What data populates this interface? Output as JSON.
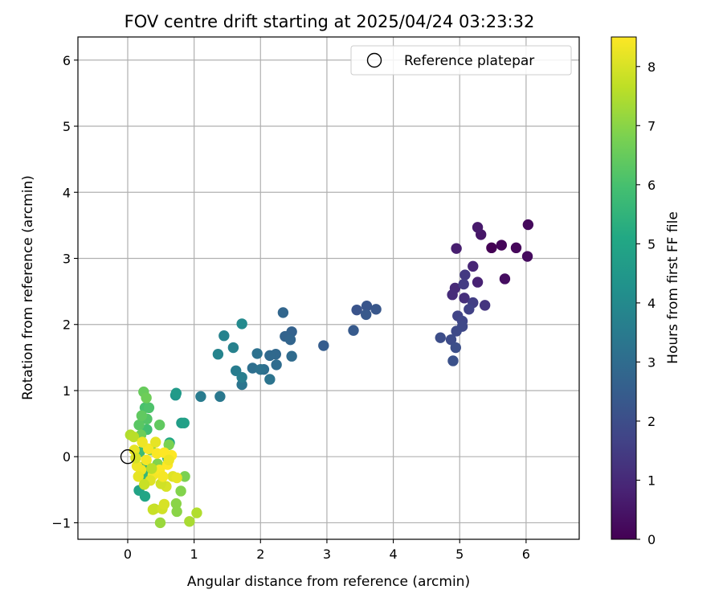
{
  "chart_data": {
    "type": "scatter",
    "title": "FOV centre drift starting at 2025/04/24 03:23:32",
    "xlabel": "Angular distance from reference (arcmin)",
    "ylabel": "Rotation from reference (arcmin)",
    "xlim": [
      -0.75,
      6.8
    ],
    "ylim": [
      -1.25,
      6.35
    ],
    "xticks": [
      0,
      1,
      2,
      3,
      4,
      5,
      6
    ],
    "yticks": [
      -1,
      0,
      1,
      2,
      3,
      4,
      5,
      6
    ],
    "grid": true,
    "legend": {
      "position": "top-right",
      "entries": [
        "Reference platepar"
      ]
    },
    "reference_point": {
      "x": 0,
      "y": 0
    },
    "colorbar": {
      "label": "Hours from first FF file",
      "colormap": "viridis",
      "range": [
        0,
        8.5
      ],
      "ticks": [
        0,
        1,
        2,
        3,
        4,
        5,
        6,
        7,
        8
      ]
    },
    "points": [
      {
        "x": 5.48,
        "y": 3.16,
        "c": 0.0
      },
      {
        "x": 5.63,
        "y": 3.2,
        "c": 0.1
      },
      {
        "x": 5.85,
        "y": 3.16,
        "c": 0.15
      },
      {
        "x": 6.03,
        "y": 3.51,
        "c": 0.2
      },
      {
        "x": 6.02,
        "y": 3.03,
        "c": 0.25
      },
      {
        "x": 5.68,
        "y": 2.69,
        "c": 0.3
      },
      {
        "x": 5.32,
        "y": 3.36,
        "c": 0.5
      },
      {
        "x": 5.27,
        "y": 3.47,
        "c": 0.6
      },
      {
        "x": 4.95,
        "y": 3.15,
        "c": 0.7
      },
      {
        "x": 5.27,
        "y": 2.64,
        "c": 0.8
      },
      {
        "x": 5.2,
        "y": 2.88,
        "c": 0.9
      },
      {
        "x": 4.93,
        "y": 2.55,
        "c": 1.0
      },
      {
        "x": 4.89,
        "y": 2.45,
        "c": 1.05
      },
      {
        "x": 5.07,
        "y": 2.4,
        "c": 1.15
      },
      {
        "x": 5.38,
        "y": 2.29,
        "c": 1.3
      },
      {
        "x": 5.08,
        "y": 2.75,
        "c": 1.4
      },
      {
        "x": 5.06,
        "y": 2.61,
        "c": 1.5
      },
      {
        "x": 5.2,
        "y": 2.33,
        "c": 1.55
      },
      {
        "x": 5.14,
        "y": 2.23,
        "c": 1.65
      },
      {
        "x": 4.97,
        "y": 2.13,
        "c": 1.7
      },
      {
        "x": 5.04,
        "y": 2.05,
        "c": 1.8
      },
      {
        "x": 5.04,
        "y": 1.97,
        "c": 1.85
      },
      {
        "x": 4.95,
        "y": 1.9,
        "c": 1.9
      },
      {
        "x": 4.87,
        "y": 1.77,
        "c": 1.95
      },
      {
        "x": 4.71,
        "y": 1.8,
        "c": 2.0
      },
      {
        "x": 4.94,
        "y": 1.65,
        "c": 2.05
      },
      {
        "x": 4.9,
        "y": 1.45,
        "c": 2.1
      },
      {
        "x": 3.45,
        "y": 2.22,
        "c": 2.2
      },
      {
        "x": 3.6,
        "y": 2.28,
        "c": 2.25
      },
      {
        "x": 3.74,
        "y": 2.23,
        "c": 2.3
      },
      {
        "x": 3.59,
        "y": 2.15,
        "c": 2.35
      },
      {
        "x": 3.4,
        "y": 1.91,
        "c": 2.4
      },
      {
        "x": 2.95,
        "y": 1.68,
        "c": 2.5
      },
      {
        "x": 2.47,
        "y": 1.89,
        "c": 2.65
      },
      {
        "x": 2.37,
        "y": 1.82,
        "c": 2.7
      },
      {
        "x": 2.45,
        "y": 1.77,
        "c": 2.75
      },
      {
        "x": 2.34,
        "y": 2.18,
        "c": 2.8
      },
      {
        "x": 2.23,
        "y": 1.55,
        "c": 2.85
      },
      {
        "x": 2.14,
        "y": 1.53,
        "c": 2.9
      },
      {
        "x": 2.47,
        "y": 1.52,
        "c": 2.95
      },
      {
        "x": 2.24,
        "y": 1.39,
        "c": 3.0
      },
      {
        "x": 2.05,
        "y": 1.32,
        "c": 3.05
      },
      {
        "x": 1.88,
        "y": 1.34,
        "c": 3.1
      },
      {
        "x": 1.95,
        "y": 1.56,
        "c": 3.15
      },
      {
        "x": 2.0,
        "y": 1.32,
        "c": 3.2
      },
      {
        "x": 2.14,
        "y": 1.17,
        "c": 3.25
      },
      {
        "x": 1.72,
        "y": 1.09,
        "c": 3.3
      },
      {
        "x": 1.39,
        "y": 0.91,
        "c": 3.4
      },
      {
        "x": 1.1,
        "y": 0.91,
        "c": 3.5
      },
      {
        "x": 1.63,
        "y": 1.3,
        "c": 3.55
      },
      {
        "x": 1.72,
        "y": 1.2,
        "c": 3.6
      },
      {
        "x": 1.59,
        "y": 1.65,
        "c": 3.7
      },
      {
        "x": 1.45,
        "y": 1.83,
        "c": 3.75
      },
      {
        "x": 1.36,
        "y": 1.55,
        "c": 3.8
      },
      {
        "x": 1.72,
        "y": 2.01,
        "c": 4.0
      },
      {
        "x": 0.72,
        "y": 0.93,
        "c": 4.4
      },
      {
        "x": 0.73,
        "y": 0.96,
        "c": 4.6
      },
      {
        "x": 0.81,
        "y": 0.51,
        "c": 4.7
      },
      {
        "x": 0.85,
        "y": 0.51,
        "c": 4.8
      },
      {
        "x": 0.17,
        "y": -0.51,
        "c": 4.9
      },
      {
        "x": 0.26,
        "y": -0.6,
        "c": 5.0
      },
      {
        "x": 0.63,
        "y": 0.21,
        "c": 5.1
      },
      {
        "x": 0.6,
        "y": -0.02,
        "c": 5.2
      },
      {
        "x": 0.22,
        "y": -0.16,
        "c": 5.4
      },
      {
        "x": 0.24,
        "y": -0.28,
        "c": 5.6
      },
      {
        "x": 0.18,
        "y": 0.07,
        "c": 5.8
      },
      {
        "x": 0.29,
        "y": 0.41,
        "c": 5.9
      },
      {
        "x": 0.26,
        "y": 0.74,
        "c": 6.0
      },
      {
        "x": 0.32,
        "y": 0.74,
        "c": 6.1
      },
      {
        "x": 0.29,
        "y": 0.57,
        "c": 6.2
      },
      {
        "x": 0.17,
        "y": 0.48,
        "c": 6.3
      },
      {
        "x": 0.21,
        "y": 0.62,
        "c": 6.4
      },
      {
        "x": 0.24,
        "y": 0.98,
        "c": 6.5
      },
      {
        "x": 0.28,
        "y": 0.89,
        "c": 6.6
      },
      {
        "x": 0.48,
        "y": 0.48,
        "c": 6.4
      },
      {
        "x": 0.2,
        "y": 0.33,
        "c": 6.6
      },
      {
        "x": 0.35,
        "y": 0.1,
        "c": 6.8
      },
      {
        "x": 0.45,
        "y": -0.11,
        "c": 6.9
      },
      {
        "x": 0.62,
        "y": 0.18,
        "c": 6.8
      },
      {
        "x": 0.86,
        "y": -0.3,
        "c": 6.8
      },
      {
        "x": 0.8,
        "y": -0.52,
        "c": 6.9
      },
      {
        "x": 0.73,
        "y": -0.71,
        "c": 7.0
      },
      {
        "x": 0.74,
        "y": -0.83,
        "c": 7.0
      },
      {
        "x": 0.49,
        "y": -1.0,
        "c": 7.2
      },
      {
        "x": 0.93,
        "y": -0.98,
        "c": 7.4
      },
      {
        "x": 1.04,
        "y": -0.85,
        "c": 7.5
      },
      {
        "x": 0.04,
        "y": 0.33,
        "c": 7.5
      },
      {
        "x": 0.09,
        "y": 0.3,
        "c": 7.6
      },
      {
        "x": 0.4,
        "y": -0.79,
        "c": 7.7
      },
      {
        "x": 0.38,
        "y": -0.8,
        "c": 7.8
      },
      {
        "x": 0.52,
        "y": -0.79,
        "c": 7.9
      },
      {
        "x": 0.55,
        "y": -0.72,
        "c": 8.0
      },
      {
        "x": 0.58,
        "y": -0.45,
        "c": 8.0
      },
      {
        "x": 0.5,
        "y": -0.41,
        "c": 7.9
      },
      {
        "x": 0.68,
        "y": -0.3,
        "c": 8.1
      },
      {
        "x": 0.74,
        "y": -0.32,
        "c": 8.2
      },
      {
        "x": 0.1,
        "y": 0.1,
        "c": 8.2
      },
      {
        "x": 0.14,
        "y": -0.14,
        "c": 8.3
      },
      {
        "x": 0.2,
        "y": -0.2,
        "c": 8.3
      },
      {
        "x": 0.28,
        "y": -0.05,
        "c": 8.4
      },
      {
        "x": 0.31,
        "y": 0.12,
        "c": 8.4
      },
      {
        "x": 0.38,
        "y": -0.28,
        "c": 8.4
      },
      {
        "x": 0.44,
        "y": 0.05,
        "c": 8.45
      },
      {
        "x": 0.48,
        "y": -0.2,
        "c": 8.45
      },
      {
        "x": 0.55,
        "y": 0.06,
        "c": 8.5
      },
      {
        "x": 0.6,
        "y": -0.12,
        "c": 8.5
      },
      {
        "x": 0.66,
        "y": 0.02,
        "c": 8.5
      },
      {
        "x": 0.22,
        "y": 0.22,
        "c": 8.3
      },
      {
        "x": 0.16,
        "y": -0.3,
        "c": 8.2
      },
      {
        "x": 0.34,
        "y": -0.36,
        "c": 8.1
      },
      {
        "x": 0.42,
        "y": 0.22,
        "c": 8.2
      },
      {
        "x": 0.25,
        "y": -0.42,
        "c": 7.8
      },
      {
        "x": 0.12,
        "y": -0.02,
        "c": 8.0
      },
      {
        "x": 0.53,
        "y": -0.3,
        "c": 8.4
      },
      {
        "x": 0.62,
        "y": -0.05,
        "c": 8.3
      },
      {
        "x": 0.36,
        "y": -0.18,
        "c": 7.6
      }
    ]
  }
}
